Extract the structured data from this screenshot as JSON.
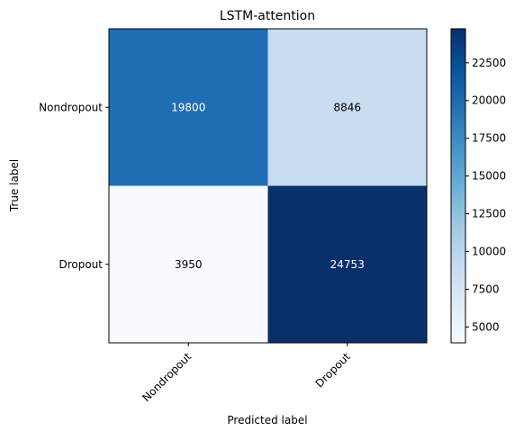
{
  "chart_data": {
    "type": "heatmap",
    "title": "LSTM-attention",
    "xlabel": "Predicted label",
    "ylabel": "True label",
    "x_categories": [
      "Nondropout",
      "Dropout"
    ],
    "y_categories": [
      "Nondropout",
      "Dropout"
    ],
    "values": [
      [
        19800,
        8846
      ],
      [
        3950,
        24753
      ]
    ],
    "colormap": "Blues",
    "colorbar": {
      "vmin": 3950,
      "vmax": 24753,
      "ticks": [
        "5000",
        "7500",
        "10000",
        "12500",
        "15000",
        "17500",
        "20000",
        "22500"
      ]
    }
  },
  "colors": {
    "cell_low": "#f7fbff",
    "cell_high": "#08306b",
    "text_light": "#ffffff",
    "text_dark": "#000000"
  }
}
